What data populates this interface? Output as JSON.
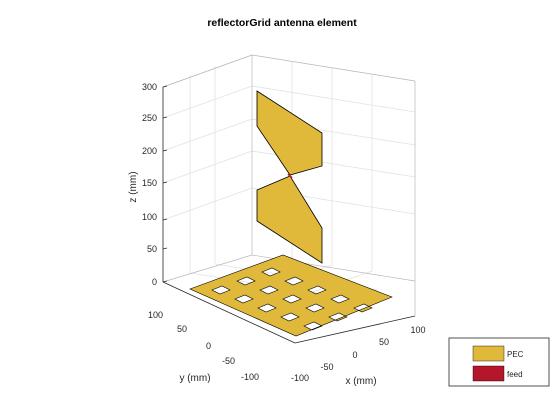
{
  "title": "reflectorGrid antenna element",
  "axes": {
    "xlabel": "x (mm)",
    "ylabel": "y (mm)",
    "zlabel": "z (mm)",
    "x_ticks": [
      "-100",
      "-50",
      "0",
      "50",
      "100"
    ],
    "y_ticks": [
      "100",
      "50",
      "0",
      "-50",
      "-100"
    ],
    "z_ticks": [
      "300",
      "250",
      "200",
      "150",
      "100",
      "50",
      "0"
    ]
  },
  "legend": {
    "items": [
      {
        "label": "PEC",
        "color": "#e0b83a"
      },
      {
        "label": "feed",
        "color": "#b4172a"
      }
    ]
  },
  "colors": {
    "pec": "#e0b83a",
    "feed": "#b4172a",
    "edge": "#000000",
    "grid": "#e2e2e2"
  }
}
